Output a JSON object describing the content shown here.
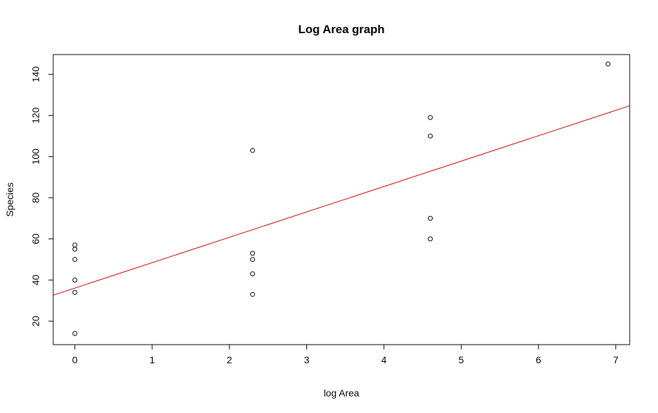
{
  "chart_data": {
    "type": "scatter",
    "title": "Log Area graph",
    "xlabel": "log Area",
    "ylabel": "Species",
    "xlim": [
      -0.28,
      7.18
    ],
    "ylim": [
      8.6,
      149.6
    ],
    "x_ticks": [
      0,
      1,
      2,
      3,
      4,
      5,
      6,
      7
    ],
    "y_ticks": [
      20,
      40,
      60,
      80,
      100,
      120,
      140
    ],
    "grid": false,
    "points": [
      {
        "x": 0,
        "y": 14
      },
      {
        "x": 0,
        "y": 34
      },
      {
        "x": 0,
        "y": 40
      },
      {
        "x": 0,
        "y": 50
      },
      {
        "x": 0,
        "y": 55
      },
      {
        "x": 0,
        "y": 57
      },
      {
        "x": 2.3,
        "y": 33
      },
      {
        "x": 2.3,
        "y": 43
      },
      {
        "x": 2.3,
        "y": 50
      },
      {
        "x": 2.3,
        "y": 53
      },
      {
        "x": 2.3,
        "y": 103
      },
      {
        "x": 4.6,
        "y": 60
      },
      {
        "x": 4.6,
        "y": 70
      },
      {
        "x": 4.6,
        "y": 110
      },
      {
        "x": 4.6,
        "y": 119
      },
      {
        "x": 6.9,
        "y": 145
      }
    ],
    "fit_line": {
      "intercept": 36.1,
      "slope": 12.34,
      "color": "#cc0000"
    },
    "point_color": "#000000"
  }
}
